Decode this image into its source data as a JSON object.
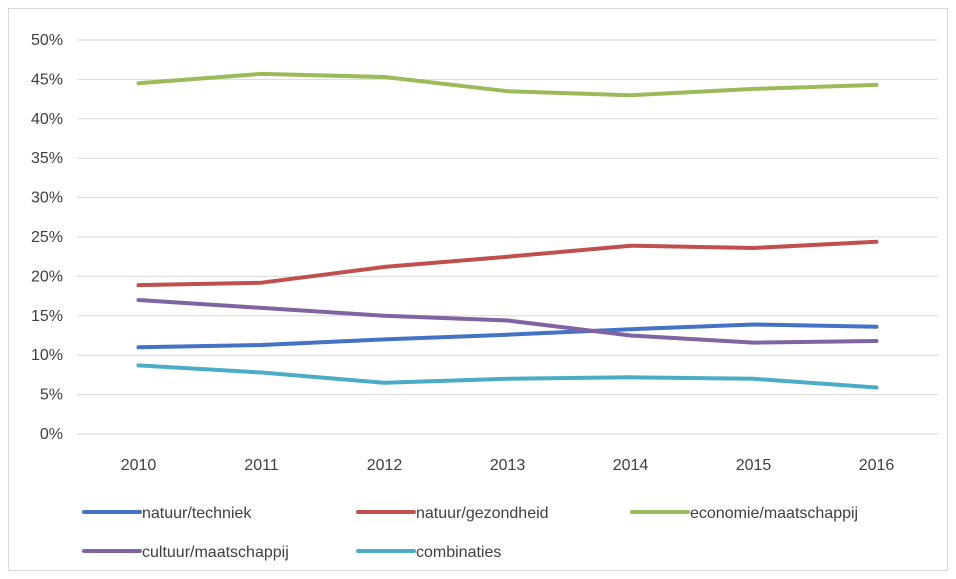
{
  "chart_data": {
    "type": "line",
    "title": "",
    "xlabel": "",
    "ylabel": "",
    "categories": [
      "2010",
      "2011",
      "2012",
      "2013",
      "2014",
      "2015",
      "2016"
    ],
    "ylim": [
      0,
      50
    ],
    "y_ticks": [
      0,
      5,
      10,
      15,
      20,
      25,
      30,
      35,
      40,
      45,
      50
    ],
    "y_tick_labels": [
      "0%",
      "5%",
      "10%",
      "15%",
      "20%",
      "25%",
      "30%",
      "35%",
      "40%",
      "45%",
      "50%"
    ],
    "grid": true,
    "legend_position": "bottom",
    "series": [
      {
        "name": "natuur/techniek",
        "color": "#4472c4",
        "values": [
          11.0,
          11.3,
          12.0,
          12.6,
          13.3,
          13.9,
          13.6
        ]
      },
      {
        "name": "natuur/gezondheid",
        "color": "#c0504d",
        "values": [
          18.9,
          19.2,
          21.2,
          22.5,
          23.9,
          23.6,
          24.4
        ]
      },
      {
        "name": "economie/maatschappij",
        "color": "#9bbb59",
        "values": [
          44.5,
          45.7,
          45.3,
          43.5,
          43.0,
          43.8,
          44.3
        ]
      },
      {
        "name": "cultuur/maatschappij",
        "color": "#8064a2",
        "values": [
          17.0,
          16.0,
          15.0,
          14.4,
          12.5,
          11.6,
          11.8
        ]
      },
      {
        "name": "combinaties",
        "color": "#4bacc6",
        "values": [
          8.7,
          7.8,
          6.5,
          7.0,
          7.2,
          7.0,
          5.9
        ]
      }
    ]
  }
}
